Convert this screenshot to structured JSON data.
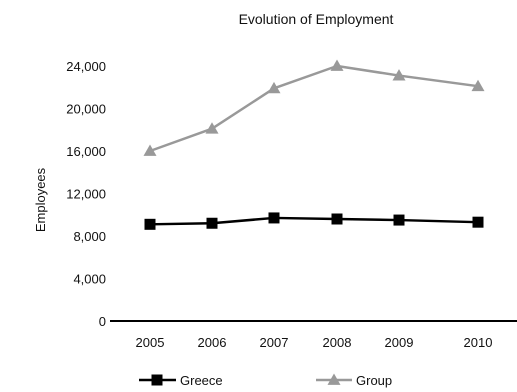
{
  "chart_data": {
    "type": "line",
    "title": "Evolution of Employment",
    "xlabel": "",
    "ylabel": "Employees",
    "categories": [
      "2005",
      "2006",
      "2007",
      "2008",
      "2009",
      "2010"
    ],
    "ylim": [
      0,
      24000
    ],
    "yticks": [
      0,
      4000,
      8000,
      12000,
      16000,
      20000,
      24000
    ],
    "ytick_labels": [
      "0",
      "4,000",
      "8,000",
      "12,000",
      "16,000",
      "20,000",
      "24,000"
    ],
    "grid": false,
    "legend_position": "bottom",
    "series": [
      {
        "name": "Greece",
        "values": [
          9100,
          9200,
          9700,
          9600,
          9500,
          9300
        ],
        "color": "#000000",
        "marker": "square"
      },
      {
        "name": "Group",
        "values": [
          16000,
          18100,
          21900,
          24000,
          23100,
          22100
        ],
        "color": "#999999",
        "marker": "triangle"
      }
    ]
  }
}
